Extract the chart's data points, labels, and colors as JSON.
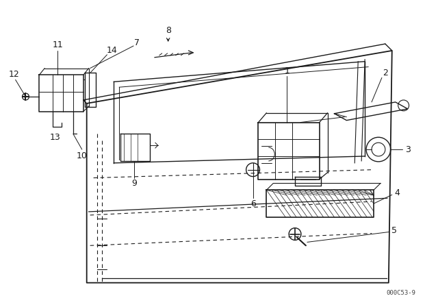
{
  "background_color": "#ffffff",
  "line_color": "#1a1a1a",
  "watermark": "000C53-9",
  "figsize": [
    6.4,
    4.48
  ],
  "dpi": 100
}
